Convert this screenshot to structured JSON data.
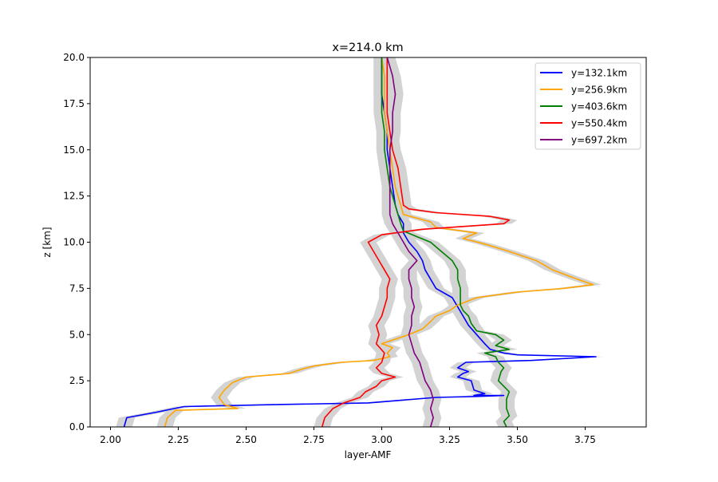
{
  "chart_data": {
    "type": "line",
    "title": "x=214.0 km",
    "xlabel": "layer-AMF",
    "ylabel": "z [km]",
    "xlim": [
      1.925,
      3.975
    ],
    "ylim": [
      0,
      20
    ],
    "xticks": [
      "2.00",
      "2.25",
      "2.50",
      "2.75",
      "3.00",
      "3.25",
      "3.50",
      "3.75"
    ],
    "yticks": [
      "0.0",
      "2.5",
      "5.0",
      "7.5",
      "10.0",
      "12.5",
      "15.0",
      "17.5",
      "20.0"
    ],
    "xtick_values": [
      2.0,
      2.25,
      2.5,
      2.75,
      3.0,
      3.25,
      3.5,
      3.75
    ],
    "ytick_values": [
      0,
      2.5,
      5,
      7.5,
      10,
      12.5,
      15,
      17.5,
      20
    ],
    "grid": false,
    "legend_position": "top-right",
    "uncertainty_band_color": "#d3d3d3",
    "uncertainty_halfwidth": 0.03,
    "series": [
      {
        "name": "y=132.1km",
        "color": "#0000ff",
        "points": [
          [
            2.05,
            0
          ],
          [
            2.06,
            0.5
          ],
          [
            2.17,
            0.8
          ],
          [
            2.27,
            1.1
          ],
          [
            2.58,
            1.2
          ],
          [
            2.95,
            1.3
          ],
          [
            3.2,
            1.6
          ],
          [
            3.35,
            1.65
          ],
          [
            3.45,
            1.7
          ],
          [
            3.34,
            1.7
          ],
          [
            3.38,
            1.8
          ],
          [
            3.34,
            2.0
          ],
          [
            3.33,
            2.5
          ],
          [
            3.28,
            2.7
          ],
          [
            3.3,
            2.9
          ],
          [
            3.32,
            3.0
          ],
          [
            3.28,
            3.2
          ],
          [
            3.31,
            3.5
          ],
          [
            3.55,
            3.6
          ],
          [
            3.79,
            3.8
          ],
          [
            3.5,
            3.9
          ],
          [
            3.45,
            4.0
          ],
          [
            3.4,
            4.2
          ],
          [
            3.38,
            4.5
          ],
          [
            3.35,
            5.0
          ],
          [
            3.32,
            5.5
          ],
          [
            3.3,
            6.0
          ],
          [
            3.28,
            6.5
          ],
          [
            3.26,
            7.0
          ],
          [
            3.2,
            7.5
          ],
          [
            3.18,
            8.0
          ],
          [
            3.16,
            8.5
          ],
          [
            3.15,
            9.0
          ],
          [
            3.13,
            9.5
          ],
          [
            3.1,
            10.0
          ],
          [
            3.08,
            10.5
          ],
          [
            3.08,
            11.0
          ],
          [
            3.06,
            11.5
          ],
          [
            3.05,
            12.0
          ],
          [
            3.04,
            13.0
          ],
          [
            3.03,
            14.0
          ],
          [
            3.02,
            15.0
          ],
          [
            3.02,
            16.0
          ],
          [
            3.01,
            17.0
          ],
          [
            3.0,
            18.0
          ],
          [
            3.0,
            19.0
          ],
          [
            3.0,
            20.0
          ]
        ]
      },
      {
        "name": "y=256.9km",
        "color": "#ffa500",
        "points": [
          [
            2.2,
            0
          ],
          [
            2.21,
            0.5
          ],
          [
            2.24,
            0.9
          ],
          [
            2.47,
            1.0
          ],
          [
            2.42,
            1.2
          ],
          [
            2.4,
            1.6
          ],
          [
            2.42,
            2.0
          ],
          [
            2.45,
            2.4
          ],
          [
            2.5,
            2.7
          ],
          [
            2.66,
            2.9
          ],
          [
            2.7,
            3.1
          ],
          [
            2.75,
            3.3
          ],
          [
            2.85,
            3.5
          ],
          [
            2.97,
            3.6
          ],
          [
            3.0,
            3.7
          ],
          [
            3.03,
            3.8
          ],
          [
            3.02,
            4.0
          ],
          [
            3.04,
            4.3
          ],
          [
            3.0,
            4.5
          ],
          [
            3.06,
            4.8
          ],
          [
            3.1,
            5.0
          ],
          [
            3.15,
            5.3
          ],
          [
            3.18,
            5.7
          ],
          [
            3.2,
            6.0
          ],
          [
            3.25,
            6.3
          ],
          [
            3.28,
            6.6
          ],
          [
            3.35,
            7.0
          ],
          [
            3.5,
            7.3
          ],
          [
            3.67,
            7.5
          ],
          [
            3.78,
            7.7
          ],
          [
            3.72,
            8.0
          ],
          [
            3.63,
            8.5
          ],
          [
            3.57,
            9.0
          ],
          [
            3.47,
            9.5
          ],
          [
            3.38,
            9.9
          ],
          [
            3.3,
            10.2
          ],
          [
            3.35,
            10.5
          ],
          [
            3.2,
            10.8
          ],
          [
            3.18,
            11.1
          ],
          [
            3.08,
            11.5
          ],
          [
            3.07,
            12.0
          ],
          [
            3.06,
            12.5
          ],
          [
            3.05,
            13.0
          ],
          [
            3.04,
            14.0
          ],
          [
            3.03,
            15.0
          ],
          [
            3.02,
            16.0
          ],
          [
            3.01,
            17.0
          ],
          [
            3.01,
            18.0
          ],
          [
            3.01,
            19.0
          ],
          [
            3.0,
            20.0
          ]
        ]
      },
      {
        "name": "y=403.6km",
        "color": "#008000",
        "points": [
          [
            3.46,
            0
          ],
          [
            3.45,
            0.3
          ],
          [
            3.47,
            0.6
          ],
          [
            3.46,
            1.0
          ],
          [
            3.46,
            1.5
          ],
          [
            3.47,
            1.9
          ],
          [
            3.45,
            2.2
          ],
          [
            3.43,
            2.5
          ],
          [
            3.44,
            3.0
          ],
          [
            3.45,
            3.2
          ],
          [
            3.43,
            3.5
          ],
          [
            3.42,
            3.8
          ],
          [
            3.38,
            4.0
          ],
          [
            3.47,
            4.2
          ],
          [
            3.42,
            4.4
          ],
          [
            3.45,
            4.7
          ],
          [
            3.42,
            5.0
          ],
          [
            3.35,
            5.2
          ],
          [
            3.33,
            5.6
          ],
          [
            3.32,
            6.0
          ],
          [
            3.3,
            6.3
          ],
          [
            3.29,
            6.6
          ],
          [
            3.29,
            7.0
          ],
          [
            3.29,
            7.5
          ],
          [
            3.28,
            8.0
          ],
          [
            3.28,
            8.5
          ],
          [
            3.26,
            9.0
          ],
          [
            3.22,
            9.5
          ],
          [
            3.18,
            10.0
          ],
          [
            3.13,
            10.3
          ],
          [
            3.08,
            10.6
          ],
          [
            3.07,
            11.0
          ],
          [
            3.06,
            11.5
          ],
          [
            3.05,
            12.0
          ],
          [
            3.04,
            12.5
          ],
          [
            3.03,
            13.0
          ],
          [
            3.02,
            14.0
          ],
          [
            3.01,
            15.0
          ],
          [
            3.01,
            16.0
          ],
          [
            3.0,
            17.0
          ],
          [
            3.0,
            18.0
          ],
          [
            3.0,
            19.0
          ],
          [
            3.0,
            20.0
          ]
        ]
      },
      {
        "name": "y=550.4km",
        "color": "#ff0000",
        "points": [
          [
            2.78,
            0
          ],
          [
            2.79,
            0.5
          ],
          [
            2.82,
            1.0
          ],
          [
            2.86,
            1.3
          ],
          [
            2.92,
            1.6
          ],
          [
            2.94,
            1.9
          ],
          [
            2.98,
            2.2
          ],
          [
            3.0,
            2.5
          ],
          [
            3.05,
            2.7
          ],
          [
            3.0,
            2.9
          ],
          [
            2.98,
            3.2
          ],
          [
            3.0,
            3.5
          ],
          [
            3.01,
            4.0
          ],
          [
            2.98,
            4.5
          ],
          [
            2.99,
            5.0
          ],
          [
            2.98,
            5.5
          ],
          [
            3.0,
            6.0
          ],
          [
            3.01,
            6.5
          ],
          [
            3.02,
            7.0
          ],
          [
            3.02,
            7.5
          ],
          [
            3.03,
            8.0
          ],
          [
            3.01,
            8.5
          ],
          [
            2.99,
            9.0
          ],
          [
            2.97,
            9.5
          ],
          [
            2.95,
            10.0
          ],
          [
            3.0,
            10.4
          ],
          [
            3.15,
            10.7
          ],
          [
            3.45,
            11.0
          ],
          [
            3.47,
            11.2
          ],
          [
            3.4,
            11.4
          ],
          [
            3.2,
            11.6
          ],
          [
            3.1,
            11.8
          ],
          [
            3.08,
            12.0
          ],
          [
            3.07,
            13.0
          ],
          [
            3.06,
            14.0
          ],
          [
            3.04,
            15.0
          ],
          [
            3.03,
            16.0
          ],
          [
            3.02,
            17.0
          ],
          [
            3.02,
            18.0
          ],
          [
            3.02,
            19.0
          ],
          [
            3.02,
            20.0
          ]
        ]
      },
      {
        "name": "y=697.2km",
        "color": "#800080",
        "points": [
          [
            3.18,
            0
          ],
          [
            3.19,
            0.5
          ],
          [
            3.18,
            1.0
          ],
          [
            3.19,
            1.5
          ],
          [
            3.18,
            2.0
          ],
          [
            3.16,
            2.5
          ],
          [
            3.15,
            3.0
          ],
          [
            3.14,
            3.5
          ],
          [
            3.12,
            4.0
          ],
          [
            3.11,
            4.5
          ],
          [
            3.1,
            5.0
          ],
          [
            3.11,
            5.5
          ],
          [
            3.11,
            6.0
          ],
          [
            3.12,
            6.5
          ],
          [
            3.11,
            7.0
          ],
          [
            3.11,
            7.5
          ],
          [
            3.1,
            8.0
          ],
          [
            3.1,
            8.5
          ],
          [
            3.13,
            9.0
          ],
          [
            3.1,
            9.5
          ],
          [
            3.08,
            10.0
          ],
          [
            3.06,
            10.5
          ],
          [
            3.04,
            11.0
          ],
          [
            3.03,
            11.5
          ],
          [
            3.03,
            12.0
          ],
          [
            3.03,
            13.0
          ],
          [
            3.03,
            14.0
          ],
          [
            3.03,
            15.0
          ],
          [
            3.04,
            16.0
          ],
          [
            3.04,
            17.0
          ],
          [
            3.05,
            18.0
          ],
          [
            3.04,
            19.0
          ],
          [
            3.02,
            20.0
          ]
        ]
      }
    ]
  }
}
